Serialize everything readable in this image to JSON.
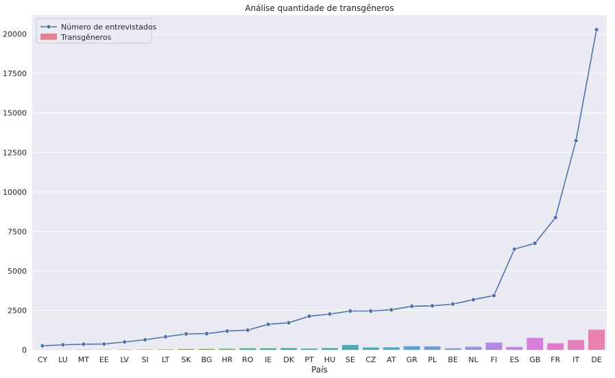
{
  "chart_data": {
    "type": "bar",
    "title": "Análise quantidade de transgêneros",
    "xlabel": "País",
    "ylabel": "",
    "ylim": [
      0,
      21200
    ],
    "yticks": [
      0,
      2500,
      5000,
      7500,
      10000,
      12500,
      15000,
      17500,
      20000
    ],
    "grid": true,
    "legend_position": "top-left",
    "categories": [
      "CY",
      "LU",
      "MT",
      "EE",
      "LV",
      "SI",
      "LT",
      "SK",
      "BG",
      "HR",
      "RO",
      "IE",
      "DK",
      "PT",
      "HU",
      "SE",
      "CZ",
      "AT",
      "GR",
      "PL",
      "BE",
      "NL",
      "FI",
      "ES",
      "GB",
      "FR",
      "IT",
      "DE"
    ],
    "series": [
      {
        "name": "Número de entrevistados",
        "type": "line",
        "color": "#4c72b0",
        "values": [
          260,
          320,
          360,
          370,
          500,
          640,
          830,
          1010,
          1030,
          1190,
          1250,
          1620,
          1720,
          2130,
          2270,
          2460,
          2460,
          2540,
          2760,
          2790,
          2900,
          3180,
          3440,
          6380,
          6750,
          8380,
          13250,
          20280
        ]
      },
      {
        "name": "Transgêneros",
        "type": "bar",
        "color": "#e8808f",
        "values": [
          10,
          10,
          15,
          15,
          20,
          20,
          30,
          60,
          60,
          70,
          100,
          100,
          110,
          80,
          110,
          310,
          150,
          160,
          230,
          220,
          100,
          200,
          460,
          190,
          760,
          420,
          620,
          1280
        ]
      }
    ],
    "bar_colors": [
      "#e88b95",
      "#e48a76",
      "#df8a5e",
      "#d89250",
      "#c99a4e",
      "#b8a14c",
      "#a6a64b",
      "#94aa4a",
      "#7fae4b",
      "#64b25a",
      "#4fb26f",
      "#47b182",
      "#45b090",
      "#44af9d",
      "#46aea8",
      "#47adb3",
      "#4aabbd",
      "#4fa9c9",
      "#56a5d6",
      "#68a0df",
      "#7e9ae3",
      "#9793e5",
      "#b08ae4",
      "#c483e2",
      "#d77edb",
      "#e27bcd",
      "#e67ebd",
      "#e882ad"
    ]
  }
}
